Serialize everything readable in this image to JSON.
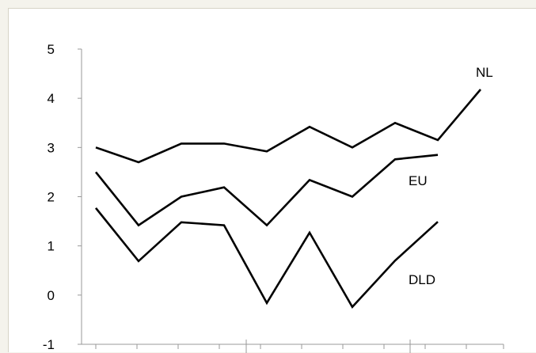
{
  "chart_data": {
    "type": "line",
    "title": "",
    "xlabel": "",
    "ylabel": "",
    "ylim": [
      -1,
      5
    ],
    "yticks": [
      "5",
      "4",
      "3",
      "2",
      "1",
      "0",
      "-1"
    ],
    "x_count": 10,
    "grid": false,
    "legend": "inline labels at line ends",
    "line_color": "#000000",
    "axis_color": "#999999",
    "series": [
      {
        "name": "NL",
        "values": [
          3.0,
          2.7,
          3.08,
          3.08,
          2.92,
          3.42,
          3.0,
          3.5,
          3.15,
          4.18
        ]
      },
      {
        "name": "EU",
        "values": [
          2.5,
          1.42,
          2.0,
          2.19,
          1.42,
          2.34,
          2.0,
          2.76,
          2.85,
          null
        ]
      },
      {
        "name": "DLD",
        "values": [
          1.77,
          0.69,
          1.48,
          1.42,
          -0.16,
          1.27,
          -0.24,
          0.7,
          1.49,
          null
        ]
      }
    ]
  }
}
